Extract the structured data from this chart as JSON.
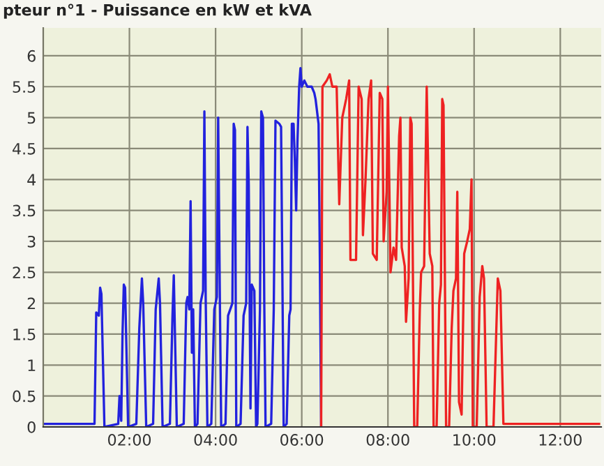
{
  "chart_data": {
    "type": "line",
    "title": "pteur n°1 - Puissance en kW et kVA",
    "xlim": [
      0,
      12.95
    ],
    "ylim": [
      0,
      6.45
    ],
    "xticks": [
      {
        "value": 2,
        "label": "02:00"
      },
      {
        "value": 4,
        "label": "04:00"
      },
      {
        "value": 6,
        "label": "06:00"
      },
      {
        "value": 8,
        "label": "08:00"
      },
      {
        "value": 10,
        "label": "10:00"
      },
      {
        "value": 12,
        "label": "12:00"
      }
    ],
    "yticks": [
      0,
      0.5,
      1,
      1.5,
      2,
      2.5,
      3,
      3.5,
      4,
      4.5,
      5,
      5.5,
      6
    ],
    "grid": true,
    "marker": "none",
    "line_style": "solid",
    "series": [
      {
        "color": "#2222dd",
        "x": [
          0,
          1.19,
          1.23,
          1.29,
          1.32,
          1.35,
          1.42,
          1.74,
          1.77,
          1.81,
          1.84,
          1.87,
          1.9,
          1.97,
          2.16,
          2.23,
          2.29,
          2.32,
          2.39,
          2.55,
          2.61,
          2.68,
          2.71,
          2.77,
          2.94,
          3.0,
          3.03,
          3.1,
          3.26,
          3.32,
          3.35,
          3.39,
          3.42,
          3.45,
          3.48,
          3.52,
          3.58,
          3.65,
          3.71,
          3.74,
          3.77,
          3.81,
          3.9,
          3.97,
          4.03,
          4.06,
          4.1,
          4.13,
          4.23,
          4.29,
          4.39,
          4.42,
          4.45,
          4.48,
          4.58,
          4.65,
          4.71,
          4.74,
          4.77,
          4.81,
          4.84,
          4.9,
          4.94,
          4.97,
          5.03,
          5.06,
          5.1,
          5.13,
          5.16,
          5.29,
          5.35,
          5.39,
          5.48,
          5.52,
          5.58,
          5.65,
          5.71,
          5.74,
          5.77,
          5.81,
          5.84,
          5.87,
          5.9,
          5.94,
          5.97,
          6.0,
          6.06,
          6.13,
          6.23,
          6.29,
          6.32,
          6.39,
          6.42,
          6.45
        ],
        "values": [
          0.05,
          0.05,
          1.85,
          1.8,
          2.25,
          2.15,
          0,
          0.05,
          0.5,
          0.1,
          1.5,
          2.3,
          2.25,
          0,
          0.05,
          1.6,
          2.4,
          2.0,
          0,
          0.05,
          1.9,
          2.4,
          2.0,
          0,
          0.05,
          1.8,
          2.45,
          0,
          0.05,
          2.0,
          2.1,
          1.9,
          3.65,
          1.2,
          1.9,
          0,
          0.05,
          2.0,
          2.2,
          5.1,
          2.1,
          0,
          0.05,
          1.9,
          2.1,
          5.0,
          2.0,
          0,
          0.05,
          1.8,
          2.0,
          4.9,
          4.8,
          0,
          0.05,
          1.8,
          2.0,
          4.85,
          3.9,
          0.3,
          2.3,
          2.2,
          0,
          0.05,
          1.9,
          5.1,
          5.0,
          2.0,
          0,
          0.05,
          1.9,
          4.95,
          4.9,
          4.85,
          0,
          0.05,
          1.8,
          1.9,
          4.9,
          4.9,
          4.3,
          3.5,
          4.6,
          5.5,
          5.8,
          5.5,
          5.6,
          5.5,
          5.5,
          5.4,
          5.3,
          4.9,
          2.7,
          0
        ]
      },
      {
        "color": "#ee2222",
        "x": [
          6.45,
          6.48,
          6.58,
          6.65,
          6.71,
          6.81,
          6.87,
          6.94,
          7.03,
          7.1,
          7.13,
          7.26,
          7.32,
          7.39,
          7.42,
          7.48,
          7.55,
          7.61,
          7.65,
          7.74,
          7.81,
          7.87,
          7.9,
          7.97,
          8.0,
          8.06,
          8.13,
          8.19,
          8.26,
          8.29,
          8.32,
          8.39,
          8.42,
          8.48,
          8.52,
          8.55,
          8.61,
          8.68,
          8.74,
          8.77,
          8.84,
          8.9,
          8.97,
          9.03,
          9.06,
          9.13,
          9.19,
          9.23,
          9.26,
          9.29,
          9.35,
          9.42,
          9.48,
          9.52,
          9.58,
          9.61,
          9.65,
          9.71,
          9.77,
          9.84,
          9.9,
          9.94,
          9.97,
          10.06,
          10.13,
          10.19,
          10.23,
          10.29,
          10.45,
          10.55,
          10.61,
          10.68,
          12.9
        ],
        "values": [
          0,
          5.5,
          5.6,
          5.7,
          5.5,
          5.5,
          3.6,
          5.0,
          5.3,
          5.6,
          2.7,
          2.7,
          5.5,
          5.3,
          3.1,
          4.0,
          5.3,
          5.6,
          2.8,
          2.7,
          5.4,
          5.3,
          3.0,
          3.8,
          5.5,
          2.5,
          2.9,
          2.7,
          4.7,
          5.0,
          2.9,
          2.6,
          1.7,
          2.4,
          5.0,
          4.9,
          0,
          0,
          1.9,
          2.5,
          2.6,
          5.5,
          2.8,
          2.6,
          0,
          0,
          2.0,
          2.3,
          5.3,
          5.2,
          0,
          0,
          1.6,
          2.2,
          2.4,
          3.8,
          0.4,
          0.2,
          2.8,
          3.0,
          3.2,
          4.0,
          0,
          0,
          2.1,
          2.6,
          2.4,
          0,
          0,
          2.4,
          2.2,
          0.05,
          0.05
        ]
      }
    ]
  }
}
